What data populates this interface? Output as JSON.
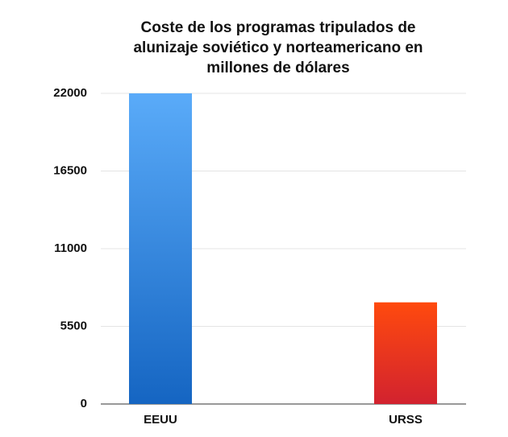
{
  "chart_data": {
    "type": "bar",
    "title": "Coste de los programas tripulados de alunizaje soviético y norteamericano en millones de dólares",
    "categories": [
      "EEUU",
      "URSS"
    ],
    "values": [
      22000,
      7200
    ],
    "colors": [
      [
        "#5aabf9",
        "#1565c2"
      ],
      [
        "#ff4a0e",
        "#d2222f"
      ]
    ],
    "ylim": [
      0,
      22000
    ],
    "yticks": [
      0,
      5500,
      11000,
      16500,
      22000
    ],
    "grid": true
  }
}
